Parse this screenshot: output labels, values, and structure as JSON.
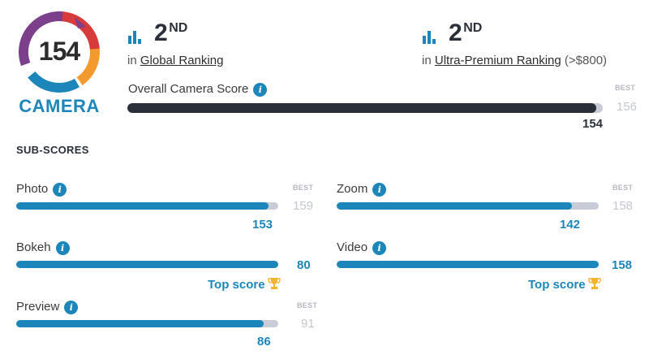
{
  "badge": {
    "score": "154",
    "label": "CAMERA",
    "colors": {
      "purple": "#7b3f8c",
      "red": "#d83b3b",
      "orange": "#f29a2e",
      "blue": "#1c86ba"
    }
  },
  "global_ranking": {
    "rank": "2",
    "suffix": "ND",
    "prefix": "in",
    "link": "Global Ranking",
    "icon": "bar-chart-icon"
  },
  "premium_ranking": {
    "rank": "2",
    "suffix": "ND",
    "prefix": "in",
    "link": "Ultra-Premium Ranking",
    "note": "(>$800)",
    "icon": "bar-chart-icon"
  },
  "overall": {
    "label": "Overall Camera Score",
    "best_tag": "BEST",
    "best": "156",
    "score": "154",
    "max": 156,
    "value": 154,
    "color": "#2a2f3a"
  },
  "subscores_title": "SUB-SCORES",
  "subscores": {
    "photo": {
      "label": "Photo",
      "best_tag": "BEST",
      "best": "159",
      "score": "153",
      "max": 159,
      "value": 153
    },
    "zoom": {
      "label": "Zoom",
      "best_tag": "BEST",
      "best": "158",
      "score": "142",
      "max": 158,
      "value": 142
    },
    "bokeh": {
      "label": "Bokeh",
      "score": "80",
      "top": "Top score",
      "value": 80,
      "max": 80
    },
    "video": {
      "label": "Video",
      "score": "158",
      "top": "Top score",
      "value": 158,
      "max": 158
    },
    "preview": {
      "label": "Preview",
      "best_tag": "BEST",
      "best": "91",
      "score": "86",
      "max": 91,
      "value": 86
    }
  },
  "info_icon": "info-icon",
  "trophy_icon": "trophy-icon"
}
